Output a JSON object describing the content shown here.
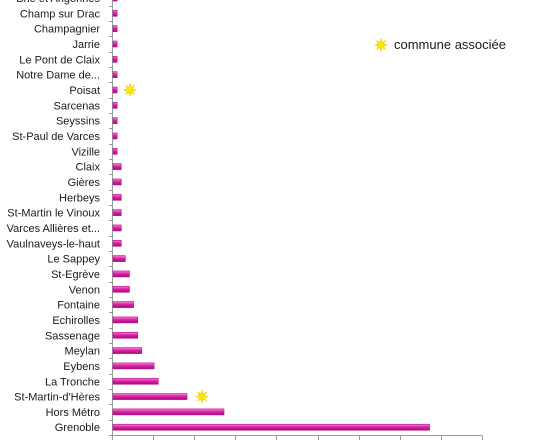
{
  "chart_data": {
    "type": "bar",
    "orientation": "horizontal",
    "categories": [
      "Brié et Angonnes",
      "Champ sur Drac",
      "Champagnier",
      "Jarrie",
      "Le Pont de Claix",
      "Notre Dame de...",
      "Poisat",
      "Sarcenas",
      "Seyssins",
      "St-Paul de Varces",
      "Vizille",
      "Claix",
      "Gières",
      "Herbeys",
      "St-Martin le Vinoux",
      "Varces Allières et...",
      "Vaulnaveys-le-haut",
      "Le Sappey",
      "St-Egrève",
      "Venon",
      "Fontaine",
      "Echirolles",
      "Sassenage",
      "Meylan",
      "Eybens",
      "La Tronche",
      "St-Martin-d'Hères",
      "Hors Métro",
      "Grenoble"
    ],
    "series": [
      {
        "color": "#e020a8",
        "values": [
          1,
          1,
          1,
          1,
          1,
          1,
          1,
          1,
          1,
          1,
          1,
          2,
          2,
          2,
          2,
          2,
          2,
          3,
          4,
          4,
          5,
          6,
          6,
          7,
          10,
          11,
          18,
          27,
          77
        ]
      }
    ],
    "xlim": [
      0,
      90
    ],
    "gridlines": false,
    "legend": {
      "position": "top-right",
      "marker": "star",
      "marker_color": "#ffe600",
      "label": "commune associée"
    },
    "starred_categories": [
      "Poisat",
      "St-Martin-d'Hères"
    ]
  }
}
